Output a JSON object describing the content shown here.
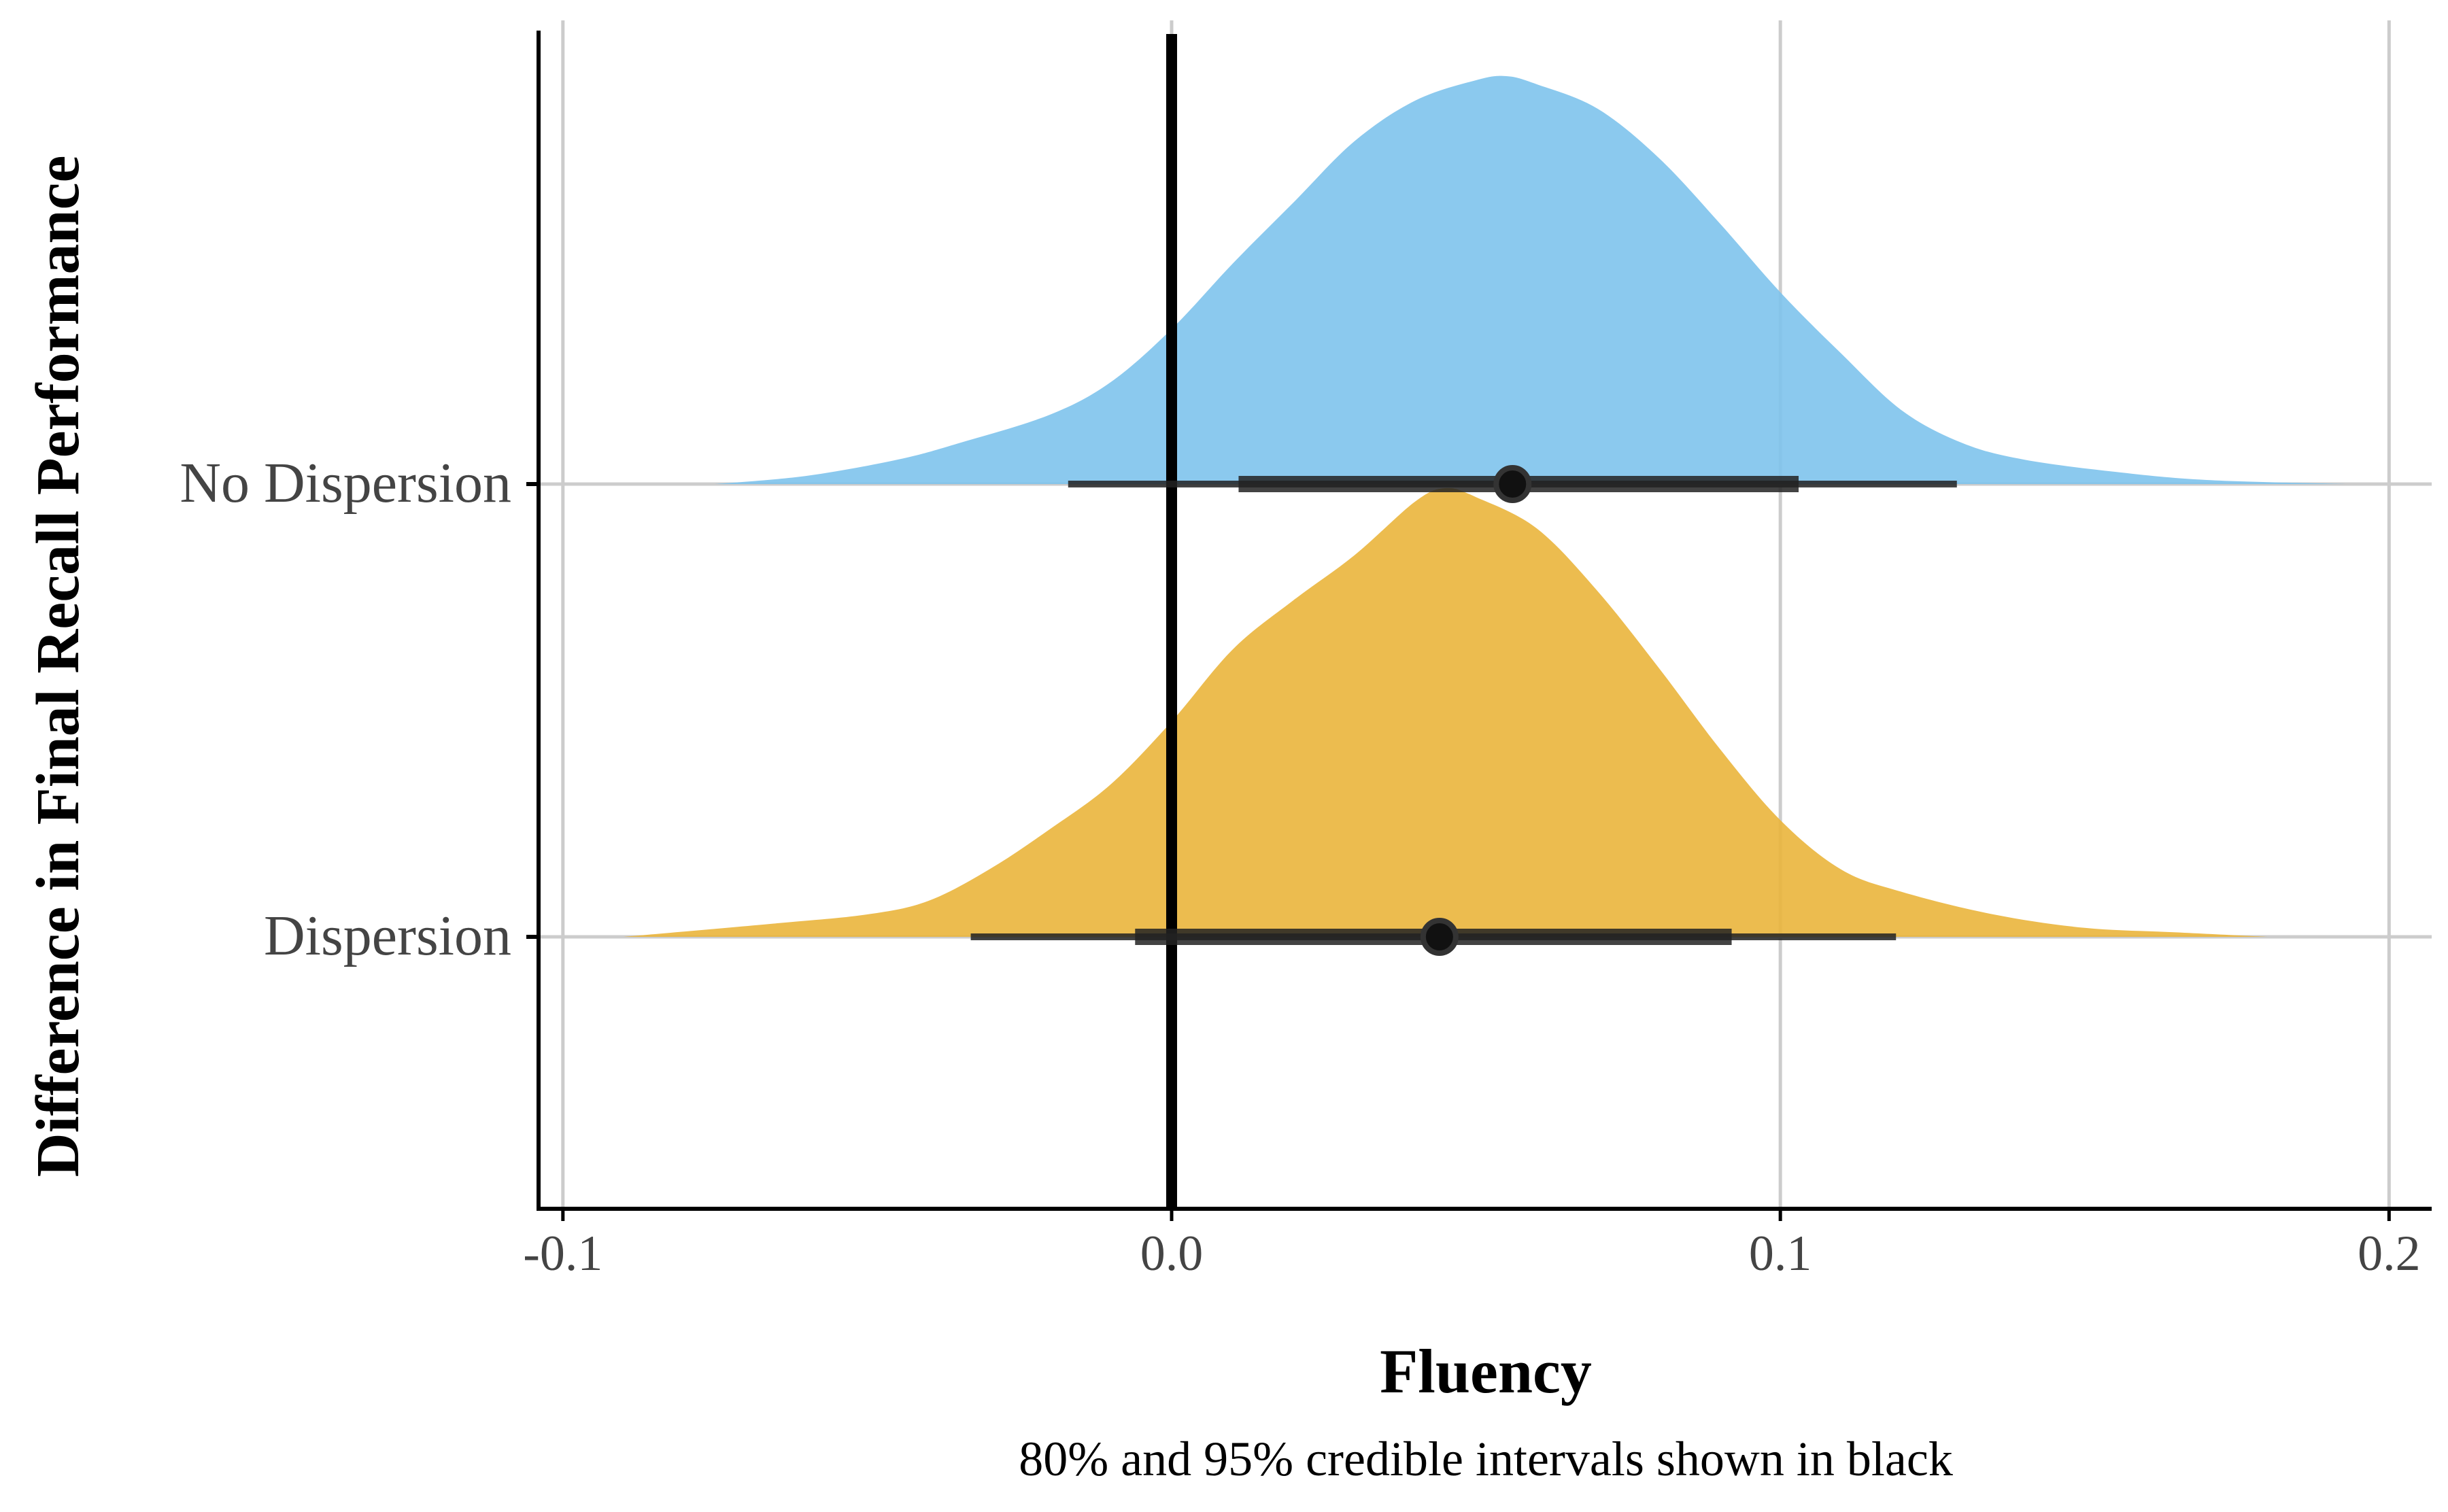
{
  "chart_data": {
    "type": "density",
    "title": "",
    "xlabel": "Fluency",
    "ylabel": "Difference in Final Recall Performance",
    "caption": "80% and 95% credible intervals shown in black",
    "xlim": [
      -0.104,
      0.207
    ],
    "x_ticks": [
      -0.1,
      0.0,
      0.1,
      0.2
    ],
    "x_tick_labels": [
      "-0.1",
      "0.0",
      "0.1",
      "0.2"
    ],
    "reference_line_x": 0.0,
    "grid": true,
    "legend": "none",
    "categories": [
      "No Dispersion",
      "Dispersion"
    ],
    "series": [
      {
        "name": "No Dispersion",
        "color": "#7EC3EC",
        "point_estimate": 0.056,
        "ci80": [
          0.011,
          0.103
        ],
        "ci95": [
          -0.017,
          0.129
        ],
        "density": [
          [
            -0.075,
            0.0
          ],
          [
            -0.06,
            0.02
          ],
          [
            -0.045,
            0.06
          ],
          [
            -0.035,
            0.1
          ],
          [
            -0.02,
            0.17
          ],
          [
            -0.01,
            0.25
          ],
          [
            0.0,
            0.38
          ],
          [
            0.01,
            0.54
          ],
          [
            0.02,
            0.69
          ],
          [
            0.03,
            0.84
          ],
          [
            0.04,
            0.94
          ],
          [
            0.05,
            0.99
          ],
          [
            0.055,
            1.0
          ],
          [
            0.06,
            0.98
          ],
          [
            0.07,
            0.92
          ],
          [
            0.08,
            0.8
          ],
          [
            0.09,
            0.64
          ],
          [
            0.1,
            0.47
          ],
          [
            0.11,
            0.32
          ],
          [
            0.12,
            0.18
          ],
          [
            0.13,
            0.1
          ],
          [
            0.14,
            0.06
          ],
          [
            0.155,
            0.03
          ],
          [
            0.17,
            0.01
          ],
          [
            0.193,
            0.0
          ]
        ]
      },
      {
        "name": "Dispersion",
        "color": "#EAB53C",
        "point_estimate": 0.044,
        "ci80": [
          -0.006,
          0.092
        ],
        "ci95": [
          -0.033,
          0.119
        ],
        "density": [
          [
            -0.09,
            0.0
          ],
          [
            -0.065,
            0.03
          ],
          [
            -0.05,
            0.05
          ],
          [
            -0.04,
            0.08
          ],
          [
            -0.03,
            0.15
          ],
          [
            -0.02,
            0.24
          ],
          [
            -0.01,
            0.34
          ],
          [
            0.0,
            0.48
          ],
          [
            0.01,
            0.64
          ],
          [
            0.02,
            0.75
          ],
          [
            0.03,
            0.85
          ],
          [
            0.04,
            0.97
          ],
          [
            0.045,
            1.0
          ],
          [
            0.05,
            0.98
          ],
          [
            0.06,
            0.91
          ],
          [
            0.07,
            0.77
          ],
          [
            0.08,
            0.6
          ],
          [
            0.09,
            0.42
          ],
          [
            0.1,
            0.26
          ],
          [
            0.11,
            0.15
          ],
          [
            0.12,
            0.1
          ],
          [
            0.135,
            0.05
          ],
          [
            0.15,
            0.02
          ],
          [
            0.165,
            0.01
          ],
          [
            0.18,
            0.0
          ]
        ]
      }
    ]
  }
}
